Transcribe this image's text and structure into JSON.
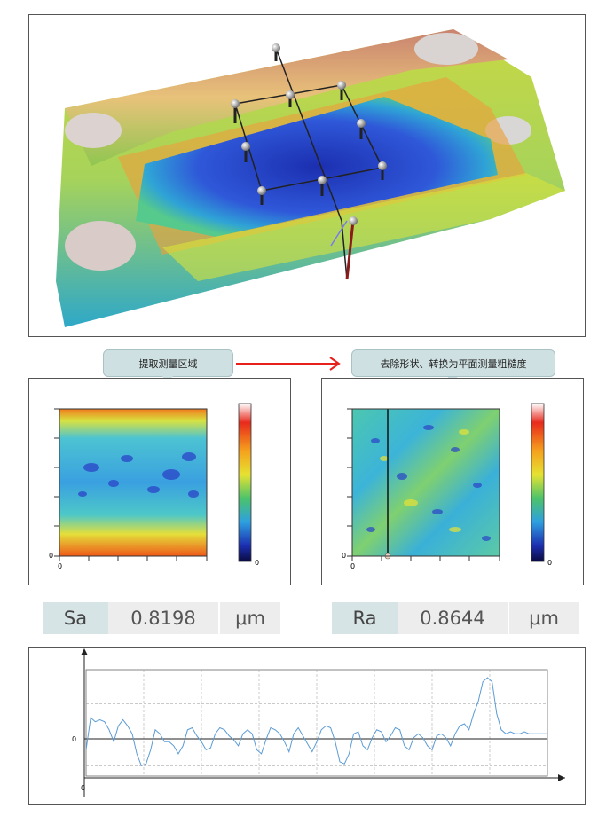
{
  "callouts": {
    "left": "提取测量区域",
    "right": "去除形状、转换为平面测量粗糙度"
  },
  "maps": {
    "left_zero_x": "0",
    "left_zero_y": "0",
    "left_scale_zero": "0",
    "right_zero_x": "0",
    "right_zero_y": "0",
    "right_scale_zero": "0"
  },
  "readouts": {
    "sa_label": "Sa",
    "sa_value": "0.8198",
    "sa_unit": "μm",
    "ra_label": "Ra",
    "ra_value": "0.8644",
    "ra_unit": "μm"
  },
  "chart_data": {
    "type": "line",
    "title": "",
    "xlabel": "",
    "ylabel": "",
    "y_tick_label": "0",
    "x_tick_label": "0",
    "grid": true,
    "ylim": [
      -1,
      1.7
    ],
    "x": [
      0,
      1,
      2,
      3,
      4,
      5,
      6,
      7,
      8,
      9,
      10,
      11,
      12,
      13,
      14,
      15,
      16,
      17,
      18,
      19,
      20,
      21,
      22,
      23,
      24,
      25,
      26,
      27,
      28,
      29,
      30,
      31,
      32,
      33,
      34,
      35,
      36,
      37,
      38,
      39,
      40,
      41,
      42,
      43,
      44,
      45,
      46,
      47,
      48,
      49,
      50,
      51,
      52,
      53,
      54,
      55,
      56,
      57,
      58,
      59,
      60,
      61,
      62,
      63,
      64,
      65,
      66,
      67,
      68,
      69,
      70,
      71,
      72,
      73,
      74,
      75,
      76,
      77,
      78,
      79,
      80,
      81,
      82,
      83,
      84,
      85,
      86,
      87,
      88,
      89,
      90,
      91,
      92,
      93,
      94,
      95,
      96,
      97,
      98,
      99,
      100
    ],
    "values": [
      -0.3,
      0.5,
      0.4,
      0.45,
      0.4,
      0.2,
      -0.1,
      0.3,
      0.45,
      0.3,
      0.1,
      -0.4,
      -0.7,
      -0.65,
      -0.3,
      0.2,
      0.1,
      -0.1,
      -0.1,
      -0.2,
      -0.4,
      -0.2,
      0.2,
      0.25,
      0.05,
      -0.1,
      -0.3,
      -0.25,
      0.1,
      0.25,
      0.2,
      0.05,
      -0.05,
      -0.2,
      0.1,
      0.2,
      0.1,
      -0.3,
      -0.4,
      -0.05,
      0.25,
      0.2,
      0.1,
      -0.1,
      -0.35,
      0.1,
      0.25,
      0.05,
      -0.15,
      -0.35,
      -0.1,
      0.2,
      0.3,
      0.25,
      -0.1,
      -0.6,
      -0.65,
      -0.4,
      0.1,
      0.15,
      -0.2,
      -0.3,
      0.0,
      0.2,
      0.15,
      -0.1,
      0.05,
      0.25,
      0.2,
      -0.2,
      -0.3,
      0.0,
      0.1,
      0.0,
      -0.2,
      -0.3,
      0.05,
      0.1,
      0.0,
      -0.2,
      0.1,
      0.3,
      0.35,
      0.2,
      0.6,
      0.9,
      1.4,
      1.5,
      1.4,
      0.6,
      0.2,
      0.1,
      0.15,
      0.1,
      0.1,
      0.15,
      0.1,
      0.1,
      0.1,
      0.1,
      0.1
    ]
  },
  "colors": {
    "arrow": "#e8201c",
    "profile_line": "#5b9bd5"
  }
}
